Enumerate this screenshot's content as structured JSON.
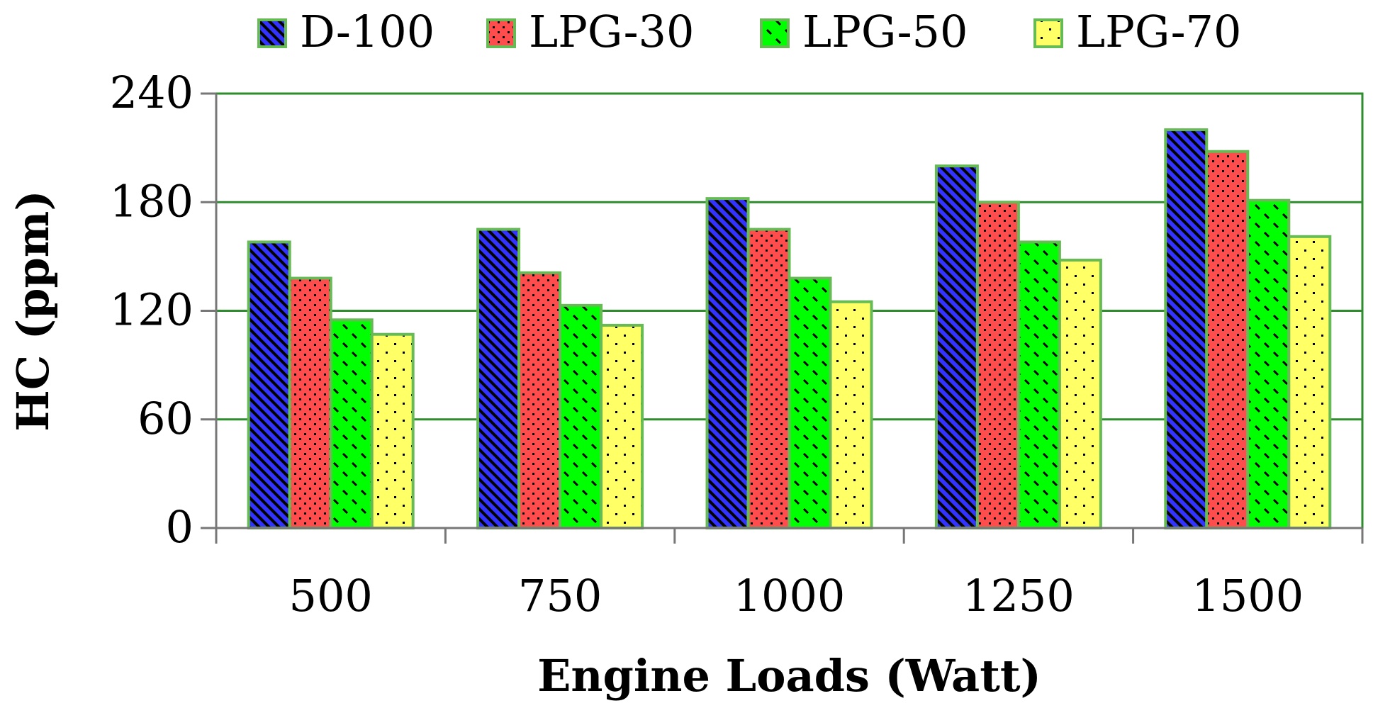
{
  "chart_data": {
    "type": "bar",
    "title": "",
    "xlabel": "Engine Loads (Watt)",
    "ylabel": "HC (ppm)",
    "categories": [
      "500",
      "750",
      "1000",
      "1250",
      "1500"
    ],
    "ylim": [
      0,
      240
    ],
    "yticks": [
      "0",
      "60",
      "120",
      "180",
      "240"
    ],
    "grid": true,
    "legend_position": "top",
    "series": [
      {
        "name": "D-100",
        "values": [
          158,
          165,
          182,
          200,
          220
        ],
        "color": "#3333ff",
        "pattern": "diagonal-lines"
      },
      {
        "name": "LPG-30",
        "values": [
          138,
          141,
          165,
          180,
          208
        ],
        "color": "#ff4d4d",
        "pattern": "dots"
      },
      {
        "name": "LPG-50",
        "values": [
          115,
          123,
          138,
          158,
          181
        ],
        "color": "#00ff00",
        "pattern": "dashes"
      },
      {
        "name": "LPG-70",
        "values": [
          107,
          112,
          125,
          148,
          161
        ],
        "color": "#ffff66",
        "pattern": "sparse-dots"
      }
    ],
    "colors": {
      "bar_border": "#66bb55",
      "gridline": "#2e8b2e",
      "axis": "#777777"
    }
  }
}
